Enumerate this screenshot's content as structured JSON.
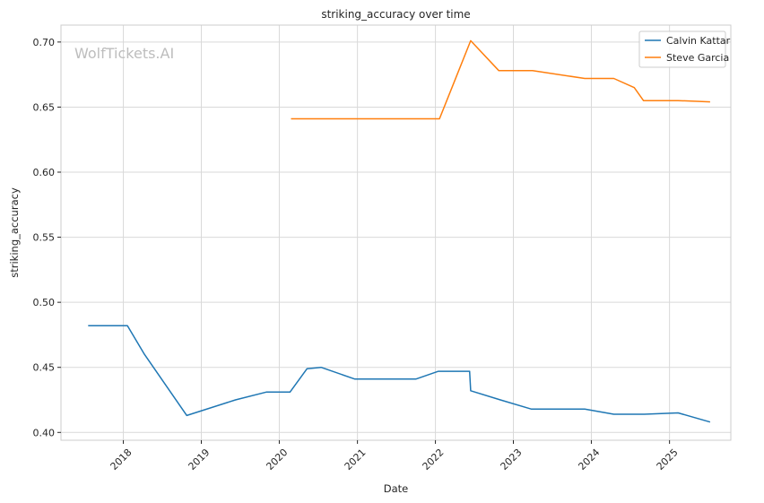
{
  "chart_data": {
    "type": "line",
    "title": "striking_accuracy over time",
    "xlabel": "Date",
    "ylabel": "striking_accuracy",
    "watermark": "WolfTickets.AI",
    "x_axis": "date",
    "xlim": [
      "2017-03-15",
      "2025-10-15"
    ],
    "ylim": [
      0.394,
      0.713
    ],
    "x_ticks": [
      "2018",
      "2019",
      "2020",
      "2021",
      "2022",
      "2023",
      "2024",
      "2025"
    ],
    "y_ticks": [
      "0.40",
      "0.45",
      "0.50",
      "0.55",
      "0.60",
      "0.65",
      "0.70"
    ],
    "grid": true,
    "legend": {
      "position": "top-right"
    },
    "series": [
      {
        "name": "Calvin Kattar",
        "color": "#1f77b4",
        "points": [
          [
            "2017-07-20",
            0.482
          ],
          [
            "2018-01-20",
            0.482
          ],
          [
            "2018-04-10",
            0.46
          ],
          [
            "2018-10-25",
            0.413
          ],
          [
            "2019-06-10",
            0.425
          ],
          [
            "2019-11-01",
            0.431
          ],
          [
            "2020-02-20",
            0.431
          ],
          [
            "2020-05-10",
            0.449
          ],
          [
            "2020-07-15",
            0.45
          ],
          [
            "2020-12-20",
            0.441
          ],
          [
            "2021-10-01",
            0.441
          ],
          [
            "2022-01-15",
            0.447
          ],
          [
            "2022-06-10",
            0.447
          ],
          [
            "2022-06-15",
            0.432
          ],
          [
            "2022-11-01",
            0.425
          ],
          [
            "2023-03-25",
            0.418
          ],
          [
            "2023-12-01",
            0.418
          ],
          [
            "2024-04-15",
            0.414
          ],
          [
            "2024-09-05",
            0.414
          ],
          [
            "2025-02-10",
            0.415
          ],
          [
            "2025-07-10",
            0.408
          ]
        ]
      },
      {
        "name": "Steve Garcia",
        "color": "#ff7f0e",
        "points": [
          [
            "2020-02-25",
            0.641
          ],
          [
            "2022-01-20",
            0.641
          ],
          [
            "2022-06-15",
            0.701
          ],
          [
            "2022-10-25",
            0.678
          ],
          [
            "2023-04-01",
            0.678
          ],
          [
            "2023-12-01",
            0.672
          ],
          [
            "2024-04-15",
            0.672
          ],
          [
            "2024-07-20",
            0.665
          ],
          [
            "2024-09-01",
            0.655
          ],
          [
            "2025-02-10",
            0.655
          ],
          [
            "2025-07-10",
            0.654
          ]
        ]
      }
    ]
  }
}
